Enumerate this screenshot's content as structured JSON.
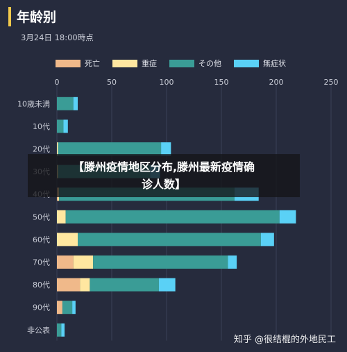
{
  "header": {
    "title": "年龄别",
    "subtitle": "3月24日 18:00時点"
  },
  "colors": {
    "background": "#262b3d",
    "accent_bar": "#f2c94c",
    "grid": "#3b4156",
    "tick_text": "#c9ccd6"
  },
  "chart_data": {
    "type": "bar",
    "orientation": "horizontal",
    "stacked": true,
    "categories": [
      "10歳未満",
      "10代",
      "20代",
      "30代",
      "40代",
      "50代",
      "60代",
      "70代",
      "80代",
      "90代",
      "非公表"
    ],
    "series": [
      {
        "name": "死亡",
        "color": "#f0b98a",
        "values": [
          0,
          0,
          0,
          0,
          1,
          0,
          0,
          15,
          21,
          5,
          0
        ]
      },
      {
        "name": "重症",
        "color": "#ffe7a0",
        "values": [
          0,
          0,
          1,
          1,
          1,
          8,
          19,
          18,
          9,
          0,
          0
        ]
      },
      {
        "name": "その他",
        "color": "#3a9c96",
        "values": [
          15,
          6,
          94,
          84,
          160,
          195,
          167,
          123,
          63,
          9,
          4
        ]
      },
      {
        "name": "無症状",
        "color": "#5ad1f6",
        "values": [
          4,
          4,
          9,
          9,
          22,
          15,
          12,
          8,
          15,
          3,
          3
        ]
      }
    ],
    "xlim": [
      0,
      250
    ],
    "xticks": [
      0,
      50,
      100,
      150,
      200,
      250
    ],
    "grid": true,
    "legend_position": "top-left"
  },
  "overlay": {
    "line1": "【滕州疫情地区分布,滕州最新疫情确",
    "line2": "诊人数】"
  },
  "watermark": {
    "text": "知乎 @很结棍的外地民工"
  }
}
